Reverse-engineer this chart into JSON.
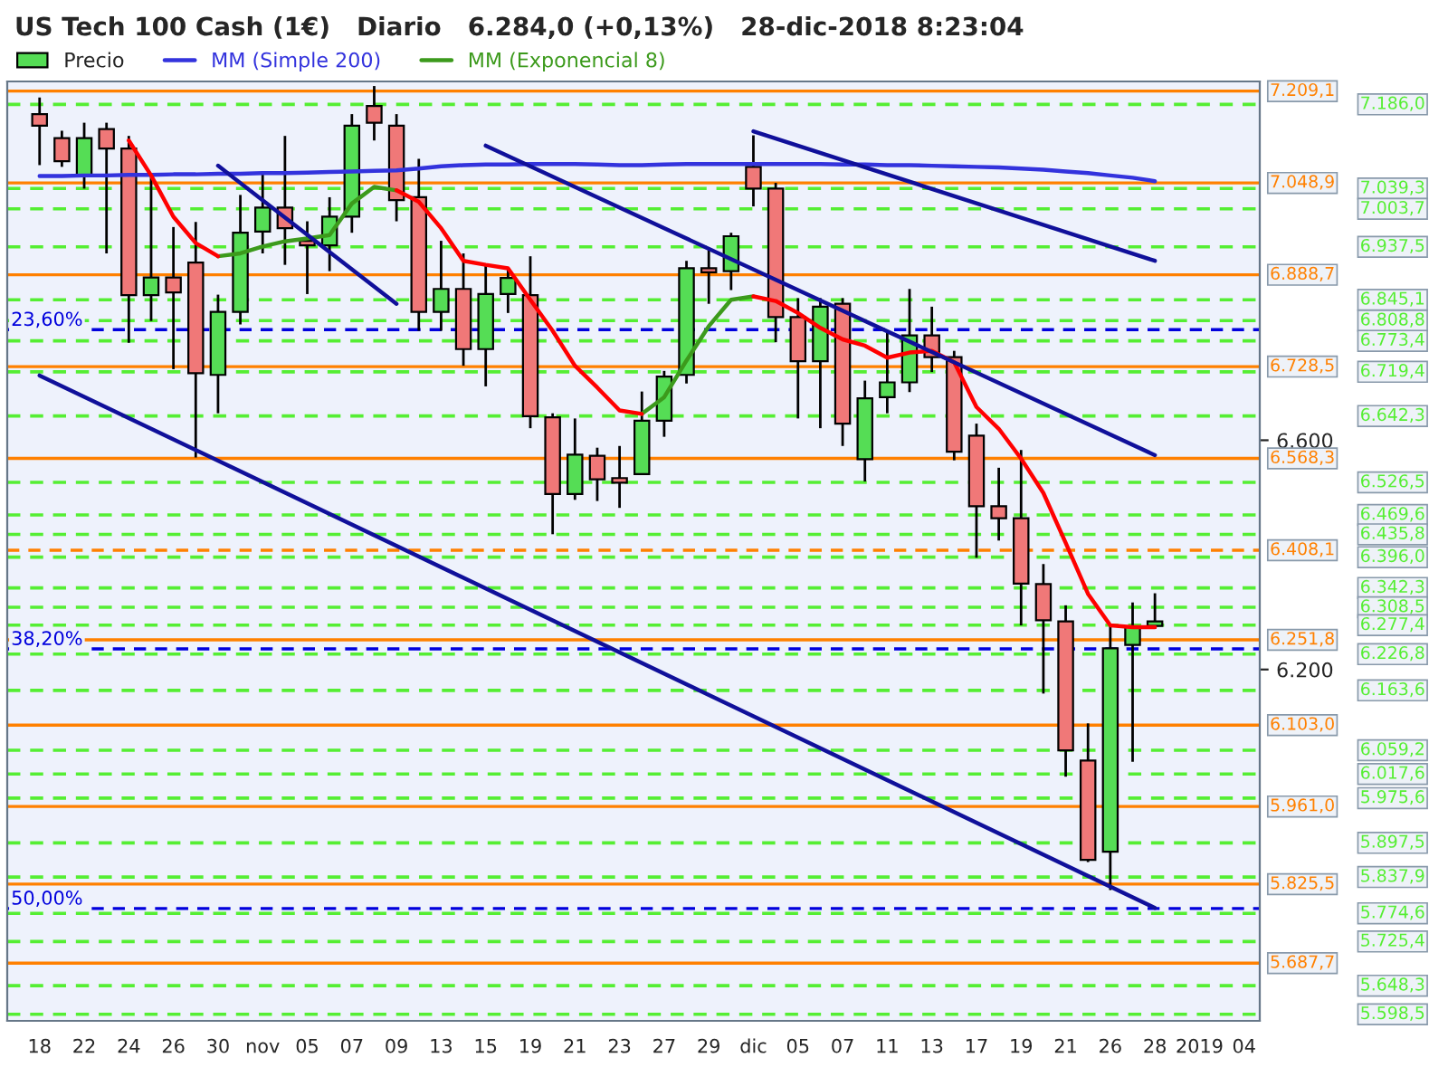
{
  "chart_data": {
    "type": "candlestick",
    "title": "US Tech 100 Cash (1€)   Diario   6.284,0 (+0,13%)   28-dic-2018 8:23:04",
    "categories": [
      "18",
      null,
      "22",
      null,
      "24",
      null,
      "26",
      null,
      "30",
      null,
      "nov",
      null,
      "05",
      null,
      "07",
      null,
      "09",
      null,
      "13",
      null,
      "15",
      null,
      "19",
      null,
      "21",
      null,
      "23",
      null,
      "27",
      null,
      "29",
      null,
      "dic",
      null,
      "05",
      null,
      "07",
      null,
      "11",
      null,
      "13",
      null,
      "17",
      null,
      "19",
      null,
      "21",
      null,
      "26",
      null,
      "28",
      null,
      "2019",
      null,
      "04"
    ],
    "series": [
      {
        "name": "Precio",
        "type": "candlestick",
        "ohlc": [
          [
            7169,
            7198,
            7080,
            7149
          ],
          [
            7127,
            7140,
            7077,
            7087
          ],
          [
            7062,
            7154,
            7039,
            7127
          ],
          [
            7143,
            7154,
            6926,
            7109
          ],
          [
            7109,
            7131,
            6770,
            6853
          ],
          [
            6853,
            7059,
            6808,
            6884
          ],
          [
            6884,
            6972,
            6724,
            6858
          ],
          [
            6910,
            6981,
            6570,
            6717
          ],
          [
            6714,
            6854,
            6647,
            6824
          ],
          [
            6824,
            7028,
            6802,
            6962
          ],
          [
            6964,
            7065,
            6926,
            7006
          ],
          [
            7006,
            7131,
            6906,
            6970
          ],
          [
            6948,
            6982,
            6855,
            6940
          ],
          [
            6940,
            7024,
            6895,
            6990
          ],
          [
            6990,
            7169,
            6962,
            7149
          ],
          [
            7183,
            7218,
            7123,
            7154
          ],
          [
            7149,
            7169,
            6982,
            7019
          ],
          [
            7024,
            7091,
            6791,
            6824
          ],
          [
            6824,
            6948,
            6791,
            6864
          ],
          [
            6864,
            6926,
            6730,
            6759
          ],
          [
            6759,
            6906,
            6694,
            6855
          ],
          [
            6855,
            6900,
            6822,
            6883
          ],
          [
            6853,
            6921,
            6621,
            6642
          ],
          [
            6640,
            6647,
            6436,
            6506
          ],
          [
            6506,
            6638,
            6496,
            6575
          ],
          [
            6573,
            6587,
            6494,
            6532
          ],
          [
            6534,
            6590,
            6482,
            6526
          ],
          [
            6541,
            6685,
            6541,
            6634
          ],
          [
            6634,
            6721,
            6606,
            6711
          ],
          [
            6714,
            6913,
            6699,
            6900
          ],
          [
            6900,
            6936,
            6838,
            6893
          ],
          [
            6895,
            6962,
            6862,
            6956
          ],
          [
            7077,
            7132,
            7008,
            7039
          ],
          [
            7039,
            7049,
            6771,
            6815
          ],
          [
            6815,
            6848,
            6638,
            6738
          ],
          [
            6738,
            6848,
            6621,
            6833
          ],
          [
            6838,
            6848,
            6590,
            6629
          ],
          [
            6567,
            6704,
            6528,
            6673
          ],
          [
            6675,
            6791,
            6647,
            6701
          ],
          [
            6701,
            6864,
            6684,
            6783
          ],
          [
            6783,
            6833,
            6719,
            6745
          ],
          [
            6745,
            6756,
            6565,
            6580
          ],
          [
            6608,
            6629,
            6395,
            6485
          ],
          [
            6485,
            6552,
            6425,
            6464
          ],
          [
            6464,
            6583,
            6277,
            6350
          ],
          [
            6349,
            6384,
            6158,
            6286
          ],
          [
            6284,
            6312,
            6013,
            6059
          ],
          [
            6041,
            6106,
            5864,
            5868
          ],
          [
            5882,
            6277,
            5815,
            6237
          ],
          [
            6243,
            6317,
            6039,
            6274
          ],
          [
            6276,
            6333,
            6271,
            6284
          ],
          null,
          null,
          null,
          null
        ]
      },
      {
        "name": "MM (Simple 200)",
        "type": "line",
        "color": "#3333dd",
        "values": [
          7061,
          7061,
          7062,
          7062,
          7063,
          7063,
          7064,
          7064,
          7065,
          7065,
          7066,
          7066,
          7067,
          7068,
          7069,
          7070,
          7071,
          7074,
          7078,
          7080,
          7081,
          7081,
          7082,
          7082,
          7082,
          7081,
          7080,
          7080,
          7081,
          7082,
          7082,
          7082,
          7082,
          7082,
          7082,
          7082,
          7081,
          7081,
          7080,
          7080,
          7079,
          7078,
          7077,
          7076,
          7074,
          7072,
          7069,
          7066,
          7062,
          7058,
          7052,
          null,
          null,
          null,
          null
        ]
      },
      {
        "name": "MM (Exponencial 8)",
        "type": "line",
        "color": "#3c9a1c",
        "values": [
          null,
          null,
          null,
          null,
          null,
          null,
          null,
          null,
          6921,
          6926,
          6938,
          6947,
          6952,
          6958,
          7013,
          7042,
          7036,
          null,
          null,
          null,
          null,
          null,
          null,
          null,
          null,
          null,
          null,
          6646,
          6675,
          6739,
          6799,
          6845,
          6851,
          null,
          null,
          null,
          null,
          null,
          null,
          null,
          null,
          null,
          null,
          null,
          null,
          null,
          null,
          null,
          null,
          null,
          null,
          null,
          null,
          null,
          null
        ]
      },
      {
        "type": "line",
        "color": "#ff0000",
        "values": [
          null,
          null,
          null,
          null,
          7123,
          7062,
          6990,
          6944,
          6921,
          null,
          null,
          null,
          null,
          null,
          null,
          null,
          7036,
          7016,
          6970,
          6913,
          6906,
          6900,
          6845,
          6791,
          6730,
          6692,
          6652,
          6646,
          null,
          null,
          null,
          null,
          6851,
          6843,
          6822,
          6796,
          6776,
          6765,
          6744,
          6753,
          6756,
          6736,
          6658,
          6620,
          6568,
          6508,
          6421,
          6332,
          6277,
          6274,
          6274,
          null,
          null,
          null,
          null
        ]
      },
      {
        "type": "line",
        "color": "#10109a",
        "x": [
          "18",
          "28"
        ],
        "values": [
          6713,
          5784
        ]
      },
      {
        "type": "line",
        "color": "#10109a",
        "x": [
          "30",
          "09"
        ],
        "values": [
          7079,
          6838
        ]
      },
      {
        "type": "line",
        "color": "#10109a",
        "x": [
          "15",
          "28"
        ],
        "values": [
          7114,
          6574
        ]
      },
      {
        "type": "line",
        "color": "#10109a",
        "x": [
          "dic",
          "28"
        ],
        "values": [
          7139,
          6913
        ]
      }
    ],
    "ylim": [
      5587,
      7226
    ],
    "yticks": [
      {
        "value": 6200,
        "label": "6.200"
      },
      {
        "value": 6600,
        "label": "6.600"
      }
    ],
    "legend": "top",
    "annotations": [
      {
        "text": "23,60%",
        "y": 6793
      },
      {
        "text": "38,20%",
        "y": 6236
      },
      {
        "text": "50,00%",
        "y": 5783
      }
    ],
    "ref_lines": [
      {
        "axis": "y",
        "value": 7209.1,
        "label": "7.209,1",
        "color": "#ff8000",
        "line_style": "solid"
      },
      {
        "axis": "y",
        "value": 7186.0,
        "label": "7.186,0",
        "color": "#55ee33",
        "line_style": "dashed"
      },
      {
        "axis": "y",
        "value": 7048.9,
        "label": "7.048,9",
        "color": "#ff8000",
        "line_style": "solid"
      },
      {
        "axis": "y",
        "value": 7039.3,
        "label": "7.039,3",
        "color": "#55ee33",
        "line_style": "dashed"
      },
      {
        "axis": "y",
        "value": 7003.7,
        "label": "7.003,7",
        "color": "#55ee33",
        "line_style": "dashed"
      },
      {
        "axis": "y",
        "value": 6937.5,
        "label": "6.937,5",
        "color": "#55ee33",
        "line_style": "dashed"
      },
      {
        "axis": "y",
        "value": 6888.7,
        "label": "6.888,7",
        "color": "#ff8000",
        "line_style": "solid"
      },
      {
        "axis": "y",
        "value": 6845.1,
        "label": "6.845,1",
        "color": "#55ee33",
        "line_style": "dashed"
      },
      {
        "axis": "y",
        "value": 6808.8,
        "label": "6.808,8",
        "color": "#55ee33",
        "line_style": "dashed"
      },
      {
        "axis": "y",
        "value": 6793,
        "color": "#0000dd",
        "line_style": "dashed"
      },
      {
        "axis": "y",
        "value": 6773.4,
        "label": "6.773,4",
        "color": "#55ee33",
        "line_style": "dashed"
      },
      {
        "axis": "y",
        "value": 6728.5,
        "label": "6.728,5",
        "color": "#ff8000",
        "line_style": "solid"
      },
      {
        "axis": "y",
        "value": 6719.4,
        "label": "6.719,4",
        "color": "#55ee33",
        "line_style": "dashed"
      },
      {
        "axis": "y",
        "value": 6642.3,
        "label": "6.642,3",
        "color": "#55ee33",
        "line_style": "dashed"
      },
      {
        "axis": "y",
        "value": 6568.3,
        "label": "6.568,3",
        "color": "#ff8000",
        "line_style": "solid"
      },
      {
        "axis": "y",
        "value": 6526.5,
        "label": "6.526,5",
        "color": "#55ee33",
        "line_style": "dashed"
      },
      {
        "axis": "y",
        "value": 6469.6,
        "label": "6.469,6",
        "color": "#55ee33",
        "line_style": "dashed"
      },
      {
        "axis": "y",
        "value": 6435.8,
        "label": "6.435,8",
        "color": "#55ee33",
        "line_style": "dashed"
      },
      {
        "axis": "y",
        "value": 6408.1,
        "label": "6.408,1",
        "color": "#ff8000",
        "line_style": "dashed"
      },
      {
        "axis": "y",
        "value": 6396.0,
        "label": "6.396,0",
        "color": "#55ee33",
        "line_style": "dashed"
      },
      {
        "axis": "y",
        "value": 6342.3,
        "label": "6.342,3",
        "color": "#55ee33",
        "line_style": "dashed"
      },
      {
        "axis": "y",
        "value": 6308.5,
        "label": "6.308,5",
        "color": "#55ee33",
        "line_style": "dashed"
      },
      {
        "axis": "y",
        "value": 6277.4,
        "label": "6.277,4",
        "color": "#55ee33",
        "line_style": "dashed"
      },
      {
        "axis": "y",
        "value": 6251.8,
        "label": "6.251,8",
        "color": "#ff8000",
        "line_style": "solid"
      },
      {
        "axis": "y",
        "value": 6236,
        "color": "#0000dd",
        "line_style": "dashed"
      },
      {
        "axis": "y",
        "value": 6226.8,
        "label": "6.226,8",
        "color": "#55ee33",
        "line_style": "dashed"
      },
      {
        "axis": "y",
        "value": 6163.6,
        "label": "6.163,6",
        "color": "#55ee33",
        "line_style": "dashed"
      },
      {
        "axis": "y",
        "value": 6103.0,
        "label": "6.103,0",
        "color": "#ff8000",
        "line_style": "solid"
      },
      {
        "axis": "y",
        "value": 6059.2,
        "label": "6.059,2",
        "color": "#55ee33",
        "line_style": "dashed"
      },
      {
        "axis": "y",
        "value": 6017.6,
        "label": "6.017,6",
        "color": "#55ee33",
        "line_style": "dashed"
      },
      {
        "axis": "y",
        "value": 5975.6,
        "label": "5.975,6",
        "color": "#55ee33",
        "line_style": "dashed"
      },
      {
        "axis": "y",
        "value": 5961.0,
        "label": "5.961,0",
        "color": "#ff8000",
        "line_style": "solid"
      },
      {
        "axis": "y",
        "value": 5897.5,
        "label": "5.897,5",
        "color": "#55ee33",
        "line_style": "dashed"
      },
      {
        "axis": "y",
        "value": 5837.9,
        "label": "5.837,9",
        "color": "#55ee33",
        "line_style": "dashed"
      },
      {
        "axis": "y",
        "value": 5825.5,
        "label": "5.825,5",
        "color": "#ff8000",
        "line_style": "solid"
      },
      {
        "axis": "y",
        "value": 5783,
        "color": "#0000dd",
        "line_style": "dashed"
      },
      {
        "axis": "y",
        "value": 5774.6,
        "label": "5.774,6",
        "color": "#55ee33",
        "line_style": "dashed"
      },
      {
        "axis": "y",
        "value": 5725.4,
        "label": "5.725,4",
        "color": "#55ee33",
        "line_style": "dashed"
      },
      {
        "axis": "y",
        "value": 5687.7,
        "label": "5.687,7",
        "color": "#ff8000",
        "line_style": "solid"
      },
      {
        "axis": "y",
        "value": 5648.3,
        "label": "5.648,3",
        "color": "#55ee33",
        "line_style": "dashed"
      },
      {
        "axis": "y",
        "value": 5598.5,
        "label": "5.598,5",
        "color": "#55ee33",
        "line_style": "dashed"
      }
    ]
  }
}
